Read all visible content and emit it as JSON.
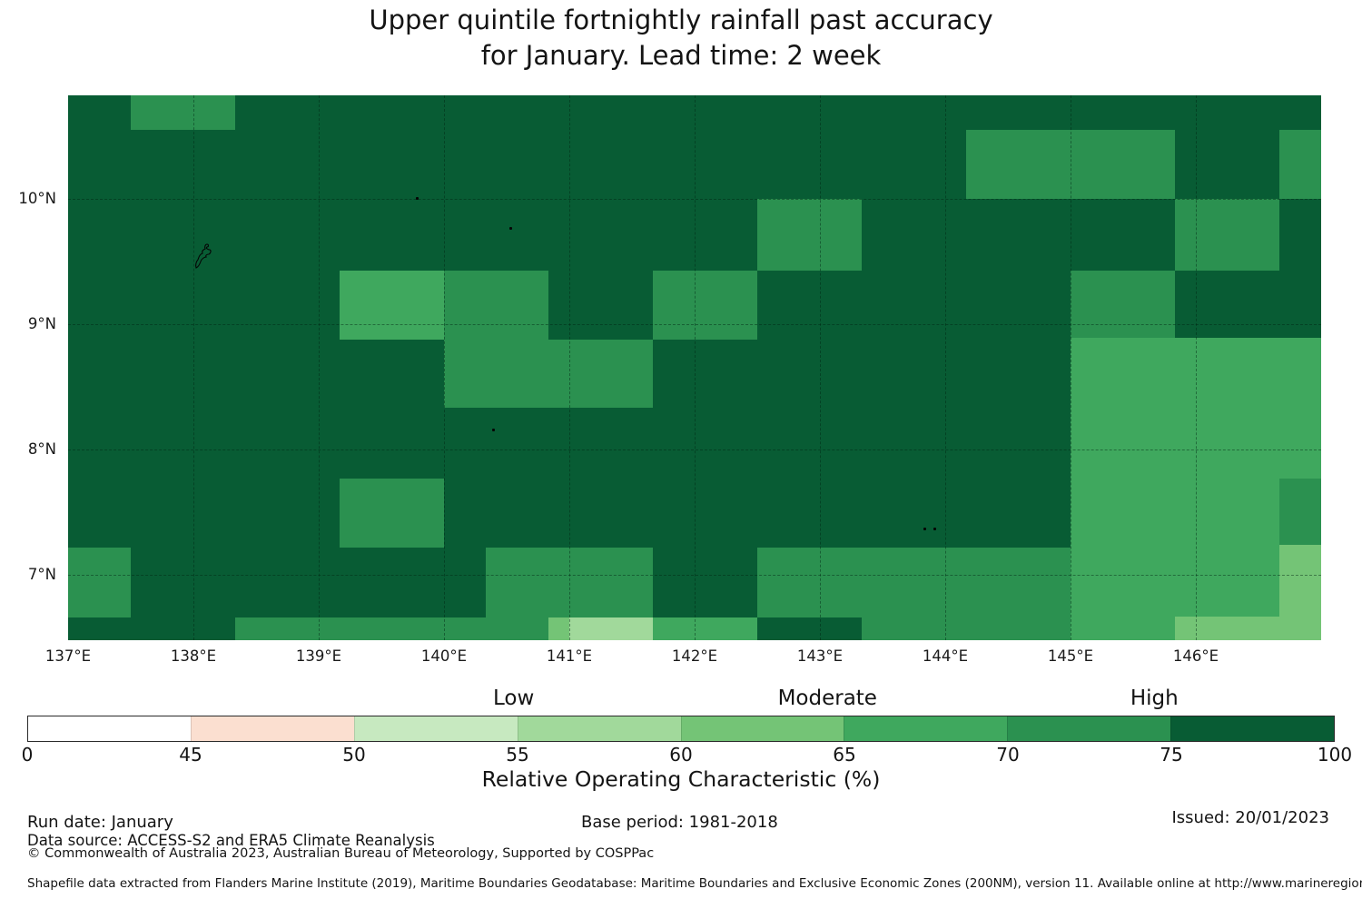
{
  "title": {
    "line1": "Upper quintile fortnightly rainfall past accuracy",
    "line2": "for January. Lead time: 2 week"
  },
  "chart_data": {
    "type": "heatmap",
    "title": "Upper quintile fortnightly rainfall past accuracy for January. Lead time: 2 week",
    "xlabel": "Relative Operating Characteristic (%)",
    "x_axis": {
      "range": [
        137.0,
        147.0
      ],
      "tick_lons": [
        137,
        138,
        139,
        140,
        141,
        142,
        143,
        144,
        145,
        146
      ],
      "tick_labels": [
        "137°E",
        "138°E",
        "139°E",
        "140°E",
        "141°E",
        "142°E",
        "143°E",
        "144°E",
        "145°E",
        "146°E"
      ]
    },
    "y_axis": {
      "range": [
        6.48,
        10.83
      ],
      "tick_lats": [
        10,
        9,
        8,
        7
      ],
      "tick_labels": [
        "10°N",
        "9°N",
        "8°N",
        "7°N"
      ]
    },
    "grid_lons": [
      138,
      139,
      140,
      141,
      142,
      143,
      144,
      145,
      146
    ],
    "grid_lats": [
      10,
      9,
      8,
      7
    ],
    "base_bin": "75-100",
    "cells": [
      {
        "lon": [
          137.5,
          138.33
        ],
        "lat": [
          10.55,
          10.83
        ],
        "bin": "70-75"
      },
      {
        "lon": [
          144.17,
          145.83
        ],
        "lat": [
          10.0,
          10.55
        ],
        "bin": "70-75"
      },
      {
        "lon": [
          146.67,
          147.0
        ],
        "lat": [
          10.0,
          10.55
        ],
        "bin": "70-75"
      },
      {
        "lon": [
          142.5,
          143.33
        ],
        "lat": [
          9.43,
          10.0
        ],
        "bin": "70-75"
      },
      {
        "lon": [
          145.83,
          146.67
        ],
        "lat": [
          9.43,
          10.0
        ],
        "bin": "70-75"
      },
      {
        "lon": [
          139.17,
          140.0
        ],
        "lat": [
          8.88,
          9.43
        ],
        "bin": "65-70"
      },
      {
        "lon": [
          140.0,
          140.83
        ],
        "lat": [
          8.88,
          9.43
        ],
        "bin": "70-75"
      },
      {
        "lon": [
          141.67,
          142.5
        ],
        "lat": [
          8.88,
          9.43
        ],
        "bin": "70-75"
      },
      {
        "lon": [
          145.0,
          145.83
        ],
        "lat": [
          8.89,
          9.43
        ],
        "bin": "70-75"
      },
      {
        "lon": [
          140.0,
          141.67
        ],
        "lat": [
          8.33,
          8.88
        ],
        "bin": "70-75"
      },
      {
        "lon": [
          145.0,
          147.0
        ],
        "lat": [
          6.48,
          8.89
        ],
        "bin": "65-70"
      },
      {
        "lon": [
          146.67,
          147.0
        ],
        "lat": [
          7.24,
          7.77
        ],
        "bin": "70-75"
      },
      {
        "lon": [
          146.67,
          147.0
        ],
        "lat": [
          6.48,
          7.24
        ],
        "bin": "60-65"
      },
      {
        "lon": [
          145.83,
          146.67
        ],
        "lat": [
          6.48,
          6.67
        ],
        "bin": "60-65"
      },
      {
        "lon": [
          139.17,
          140.0
        ],
        "lat": [
          7.22,
          7.77
        ],
        "bin": "70-75"
      },
      {
        "lon": [
          137.0,
          137.5
        ],
        "lat": [
          6.66,
          7.22
        ],
        "bin": "70-75"
      },
      {
        "lon": [
          140.33,
          141.67
        ],
        "lat": [
          6.66,
          7.22
        ],
        "bin": "70-75"
      },
      {
        "lon": [
          142.5,
          143.67
        ],
        "lat": [
          6.66,
          7.22
        ],
        "bin": "70-75"
      },
      {
        "lon": [
          143.67,
          145.0
        ],
        "lat": [
          6.48,
          7.22
        ],
        "bin": "70-75"
      },
      {
        "lon": [
          138.33,
          140.83
        ],
        "lat": [
          6.48,
          6.66
        ],
        "bin": "70-75"
      },
      {
        "lon": [
          140.83,
          141.0
        ],
        "lat": [
          6.48,
          6.66
        ],
        "bin": "60-65"
      },
      {
        "lon": [
          141.0,
          141.67
        ],
        "lat": [
          6.48,
          6.66
        ],
        "bin": "55-60"
      },
      {
        "lon": [
          141.67,
          142.5
        ],
        "lat": [
          6.48,
          6.66
        ],
        "bin": "65-70"
      },
      {
        "lon": [
          143.33,
          143.67
        ],
        "lat": [
          6.48,
          6.66
        ],
        "bin": "70-75"
      }
    ],
    "islands": [
      {
        "name": "yap-island",
        "lon": 138.08,
        "lat": 9.53,
        "kind": "outline"
      },
      {
        "name": "islet",
        "lon": 139.78,
        "lat": 10.01,
        "kind": "dot"
      },
      {
        "name": "islet",
        "lon": 140.53,
        "lat": 9.77,
        "kind": "dot"
      },
      {
        "name": "ngulu-atoll",
        "lon": 140.39,
        "lat": 8.16,
        "kind": "dot"
      },
      {
        "name": "islet",
        "lon": 143.83,
        "lat": 7.37,
        "kind": "dot"
      },
      {
        "name": "islet",
        "lon": 143.91,
        "lat": 7.37,
        "kind": "dot"
      }
    ],
    "colorbar": {
      "ticks": [
        "0",
        "45",
        "50",
        "55",
        "60",
        "65",
        "70",
        "75",
        "100"
      ],
      "segments": [
        {
          "range": "0-45",
          "color": "#ffffff"
        },
        {
          "range": "45-50",
          "color": "#fbdfd0"
        },
        {
          "range": "50-55",
          "color": "#c7e9c0"
        },
        {
          "range": "55-60",
          "color": "#a1d99b"
        },
        {
          "range": "60-65",
          "color": "#74c476"
        },
        {
          "range": "65-70",
          "color": "#3fa85e"
        },
        {
          "range": "70-75",
          "color": "#2b9150"
        },
        {
          "range": "75-100",
          "color": "#085c34"
        }
      ],
      "region_labels": [
        {
          "label": "Low",
          "pos": 0.372
        },
        {
          "label": "Moderate",
          "pos": 0.612
        },
        {
          "label": "High",
          "pos": 0.862
        }
      ]
    }
  },
  "footer": {
    "run_date": "Run date: January",
    "base_period": "Base period: 1981-2018",
    "issued": "Issued: 20/01/2023",
    "data_source": "Data source: ACCESS-S2 and ERA5 Climate Reanalysis",
    "copyright": "© Commonwealth of Australia 2023, Australian Bureau of Meteorology, Supported by COSPPac",
    "shapefile_note": "Shapefile data extracted from Flanders Marine Institute (2019), Maritime Boundaries Geodatabase: Maritime Boundaries and Exclusive Economic Zones (200NM), version 11. Available online at http://www.marineregions.org/."
  }
}
